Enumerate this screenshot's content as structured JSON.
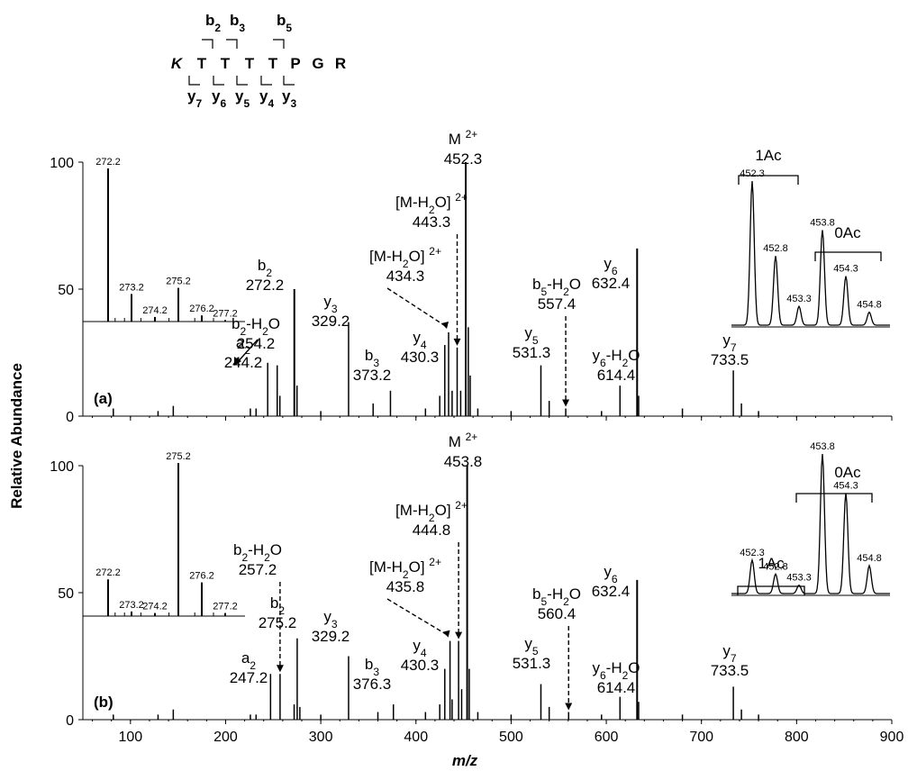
{
  "peptide": {
    "residues": [
      "K",
      "T",
      "T",
      "T",
      "T",
      "P",
      "G",
      "R"
    ],
    "b_ions": [
      "b2",
      "b3",
      "b5"
    ],
    "y_ions": [
      "y7",
      "y6",
      "y5",
      "y4",
      "y3"
    ]
  },
  "axes": {
    "xlabel": "m/z",
    "ylabel": "Relative Abundance"
  },
  "chart_data": [
    {
      "type": "bar",
      "panel": "(a)",
      "xlim": [
        50,
        900
      ],
      "ylim": [
        0,
        100
      ],
      "x_ticks": [
        "100",
        "200",
        "300",
        "400",
        "500",
        "600",
        "700",
        "800",
        "900"
      ],
      "y_ticks": [
        "0",
        "50",
        "100"
      ],
      "peaks": [
        {
          "mz": 82,
          "rel": 3
        },
        {
          "mz": 129,
          "rel": 2
        },
        {
          "mz": 145,
          "rel": 4
        },
        {
          "mz": 226,
          "rel": 3
        },
        {
          "mz": 232,
          "rel": 3
        },
        {
          "mz": 244.2,
          "rel": 21,
          "label": "a2",
          "val": "244.2"
        },
        {
          "mz": 254.2,
          "rel": 20,
          "label": "b2-H2O",
          "val": "254.2"
        },
        {
          "mz": 257,
          "rel": 8
        },
        {
          "mz": 272.2,
          "rel": 50,
          "label": "b2",
          "val": "272.2"
        },
        {
          "mz": 275,
          "rel": 12
        },
        {
          "mz": 300,
          "rel": 2
        },
        {
          "mz": 329.2,
          "rel": 37,
          "label": "y3",
          "val": "329.2"
        },
        {
          "mz": 355,
          "rel": 5
        },
        {
          "mz": 373.2,
          "rel": 10,
          "label": "b3",
          "val": "373.2"
        },
        {
          "mz": 410,
          "rel": 3
        },
        {
          "mz": 425,
          "rel": 8
        },
        {
          "mz": 430.3,
          "rel": 28,
          "label": "y4",
          "val": "430.3"
        },
        {
          "mz": 434.3,
          "rel": 33,
          "label": "[M-H2O] 2+",
          "val": "434.3"
        },
        {
          "mz": 438,
          "rel": 10
        },
        {
          "mz": 443.3,
          "rel": 27,
          "label": "[M-H2O] 2+",
          "val": "443.3"
        },
        {
          "mz": 447,
          "rel": 10
        },
        {
          "mz": 452.3,
          "rel": 100,
          "label": "M 2+",
          "val": "452.3"
        },
        {
          "mz": 455,
          "rel": 35
        },
        {
          "mz": 457,
          "rel": 16
        },
        {
          "mz": 465,
          "rel": 3
        },
        {
          "mz": 500,
          "rel": 2
        },
        {
          "mz": 531.3,
          "rel": 20,
          "label": "y5",
          "val": "531.3"
        },
        {
          "mz": 540,
          "rel": 6
        },
        {
          "mz": 557.4,
          "rel": 3,
          "label": "b5-H2O",
          "val": "557.4"
        },
        {
          "mz": 595,
          "rel": 2
        },
        {
          "mz": 614.4,
          "rel": 12,
          "label": "y6-H2O",
          "val": "614.4"
        },
        {
          "mz": 632.4,
          "rel": 66,
          "label": "y6",
          "val": "632.4"
        },
        {
          "mz": 634,
          "rel": 8
        },
        {
          "mz": 680,
          "rel": 3
        },
        {
          "mz": 733.5,
          "rel": 18,
          "label": "y7",
          "val": "733.5"
        },
        {
          "mz": 742,
          "rel": 5
        },
        {
          "mz": 760,
          "rel": 2
        }
      ],
      "inset_left": {
        "peaks": [
          {
            "mz": "272.2",
            "rel": 100
          },
          {
            "mz": "273.2",
            "rel": 18
          },
          {
            "mz": "274.2",
            "rel": 3
          },
          {
            "mz": "275.2",
            "rel": 22
          },
          {
            "mz": "276.2",
            "rel": 4
          },
          {
            "mz": "277.2",
            "rel": 1
          }
        ]
      },
      "inset_right": {
        "groups": [
          "1Ac",
          "0Ac"
        ],
        "peaks": [
          {
            "mz": "452.3",
            "rel": 100
          },
          {
            "mz": "452.8",
            "rel": 48
          },
          {
            "mz": "453.3",
            "rel": 13
          },
          {
            "mz": "453.8",
            "rel": 66
          },
          {
            "mz": "454.3",
            "rel": 34
          },
          {
            "mz": "454.8",
            "rel": 9
          }
        ]
      }
    },
    {
      "type": "bar",
      "panel": "(b)",
      "xlim": [
        50,
        900
      ],
      "ylim": [
        0,
        100
      ],
      "x_ticks": [
        "100",
        "200",
        "300",
        "400",
        "500",
        "600",
        "700",
        "800",
        "900"
      ],
      "y_ticks": [
        "0",
        "50",
        "100"
      ],
      "peaks": [
        {
          "mz": 82,
          "rel": 2
        },
        {
          "mz": 129,
          "rel": 2
        },
        {
          "mz": 145,
          "rel": 4
        },
        {
          "mz": 226,
          "rel": 2
        },
        {
          "mz": 232,
          "rel": 2
        },
        {
          "mz": 247.2,
          "rel": 18,
          "label": "a2",
          "val": "247.2"
        },
        {
          "mz": 257.2,
          "rel": 18,
          "label": "b2-H2O",
          "val": "257.2"
        },
        {
          "mz": 272,
          "rel": 6
        },
        {
          "mz": 275.2,
          "rel": 32,
          "label": "b2",
          "val": "275.2"
        },
        {
          "mz": 278,
          "rel": 5
        },
        {
          "mz": 300,
          "rel": 2
        },
        {
          "mz": 329.2,
          "rel": 25,
          "label": "y3",
          "val": "329.2"
        },
        {
          "mz": 360,
          "rel": 3
        },
        {
          "mz": 376.3,
          "rel": 6,
          "label": "b3",
          "val": "376.3"
        },
        {
          "mz": 410,
          "rel": 3
        },
        {
          "mz": 425,
          "rel": 6
        },
        {
          "mz": 430.3,
          "rel": 20,
          "label": "y4",
          "val": "430.3"
        },
        {
          "mz": 435.8,
          "rel": 31,
          "label": "[M-H2O] 2+",
          "val": "435.8"
        },
        {
          "mz": 438,
          "rel": 8
        },
        {
          "mz": 444.8,
          "rel": 31,
          "label": "[M-H2O] 2+",
          "val": "444.8"
        },
        {
          "mz": 448,
          "rel": 12
        },
        {
          "mz": 453.8,
          "rel": 100,
          "label": "M 2+",
          "val": "453.8"
        },
        {
          "mz": 456,
          "rel": 20
        },
        {
          "mz": 465,
          "rel": 3
        },
        {
          "mz": 500,
          "rel": 2
        },
        {
          "mz": 531.3,
          "rel": 14,
          "label": "y5",
          "val": "531.3"
        },
        {
          "mz": 540,
          "rel": 5
        },
        {
          "mz": 560.4,
          "rel": 3,
          "label": "b5-H2O",
          "val": "560.4"
        },
        {
          "mz": 595,
          "rel": 2
        },
        {
          "mz": 614.4,
          "rel": 9,
          "label": "y6-H2O",
          "val": "614.4"
        },
        {
          "mz": 632.4,
          "rel": 55,
          "label": "y6",
          "val": "632.4"
        },
        {
          "mz": 634,
          "rel": 7
        },
        {
          "mz": 680,
          "rel": 2
        },
        {
          "mz": 733.5,
          "rel": 13,
          "label": "y7",
          "val": "733.5"
        },
        {
          "mz": 742,
          "rel": 4
        },
        {
          "mz": 760,
          "rel": 2
        }
      ],
      "inset_left": {
        "peaks": [
          {
            "mz": "272.2",
            "rel": 24
          },
          {
            "mz": "273.2",
            "rel": 3
          },
          {
            "mz": "274.2",
            "rel": 2
          },
          {
            "mz": "275.2",
            "rel": 100
          },
          {
            "mz": "276.2",
            "rel": 22
          },
          {
            "mz": "277.2",
            "rel": 2
          }
        ]
      },
      "inset_right": {
        "groups": [
          "1Ac",
          "0Ac"
        ],
        "peaks": [
          {
            "mz": "452.3",
            "rel": 24
          },
          {
            "mz": "452.8",
            "rel": 14
          },
          {
            "mz": "453.3",
            "rel": 6
          },
          {
            "mz": "453.8",
            "rel": 100
          },
          {
            "mz": "454.3",
            "rel": 72
          },
          {
            "mz": "454.8",
            "rel": 20
          }
        ]
      }
    }
  ]
}
